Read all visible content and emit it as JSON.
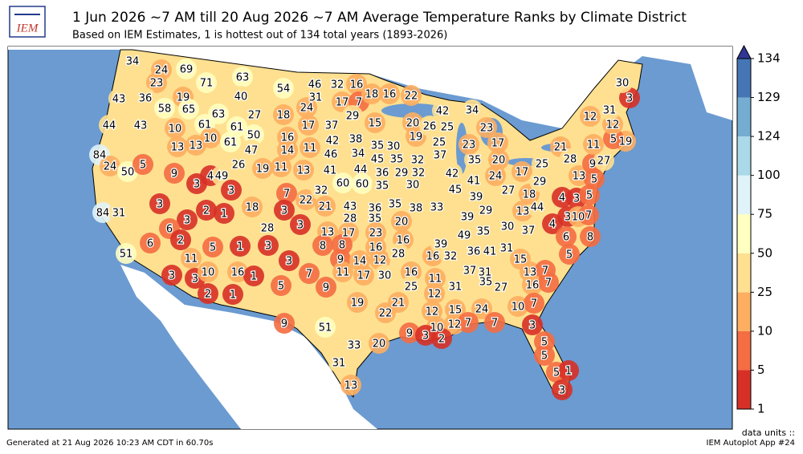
{
  "header": {
    "title": "1 Jun 2026 ~7 AM till 20 Aug 2026 ~7 AM Average Temperature Ranks by Climate District",
    "subtitle": "Based on IEM Estimates, 1 is hottest out of 134 total years (1893-2026)"
  },
  "logo": "IEM",
  "chart_data": {
    "type": "choropleth",
    "values": [
      34,
      24,
      69,
      23,
      71,
      63,
      54,
      43,
      36,
      19,
      40,
      58,
      65,
      63,
      27,
      18,
      44,
      43,
      10,
      61,
      61,
      13,
      13,
      10,
      61,
      50,
      47,
      16,
      14,
      11,
      46,
      32,
      16,
      31,
      17,
      7,
      24,
      29,
      18,
      16,
      22,
      17,
      37,
      15,
      42,
      38,
      35,
      30,
      46,
      34,
      84,
      24,
      50,
      5,
      9,
      4,
      49,
      3,
      3,
      26,
      19,
      11,
      13,
      41,
      44,
      45,
      35,
      32,
      36,
      29,
      32,
      84,
      31,
      3,
      2,
      1,
      3,
      6,
      18,
      7,
      22,
      3,
      3,
      28,
      32,
      60,
      60,
      35,
      30,
      21,
      43,
      36,
      28,
      35,
      35,
      38,
      33,
      51,
      6,
      2,
      11,
      5,
      1,
      3,
      3,
      3,
      3,
      10,
      2,
      16,
      1,
      1,
      5,
      7,
      9,
      13,
      17,
      23,
      8,
      8,
      16,
      9,
      14,
      12,
      11,
      17,
      30,
      20,
      16,
      28,
      16,
      25,
      16,
      32,
      11,
      31,
      12,
      36,
      41,
      31,
      39,
      49,
      35,
      30,
      37,
      39,
      29,
      13,
      44,
      18,
      27,
      17,
      25,
      39,
      41,
      24,
      35,
      45,
      42,
      37,
      25,
      19,
      20,
      26,
      25,
      42,
      34,
      23,
      23,
      17,
      20,
      21,
      28,
      29,
      13,
      5,
      4,
      3,
      5,
      4,
      3,
      10,
      7,
      6,
      8,
      5,
      15,
      13,
      7,
      16,
      7,
      37,
      31,
      35,
      27,
      10,
      7,
      24,
      15,
      21,
      22,
      12,
      10,
      12,
      7,
      7,
      3,
      9,
      3,
      2,
      19,
      9,
      51,
      33,
      20,
      31,
      13,
      5,
      5,
      5,
      1,
      3,
      9,
      27,
      19,
      5,
      11,
      12,
      12,
      31,
      3,
      30
    ],
    "colorbar": {
      "ticks": [
        1,
        5,
        10,
        25,
        50,
        75,
        100,
        124,
        129,
        134
      ],
      "colors": [
        "#d73027",
        "#f46d43",
        "#fdae61",
        "#fee090",
        "#ffffbf",
        "#e0f3f8",
        "#abd9e9",
        "#74add1",
        "#4575b4"
      ],
      "extend_color": "#313695"
    }
  },
  "footer": {
    "left": "Generated at 21 Aug 2026 10:23 AM CDT in 60.70s",
    "units": "data units ::",
    "app": "IEM Autoplot App #24"
  }
}
